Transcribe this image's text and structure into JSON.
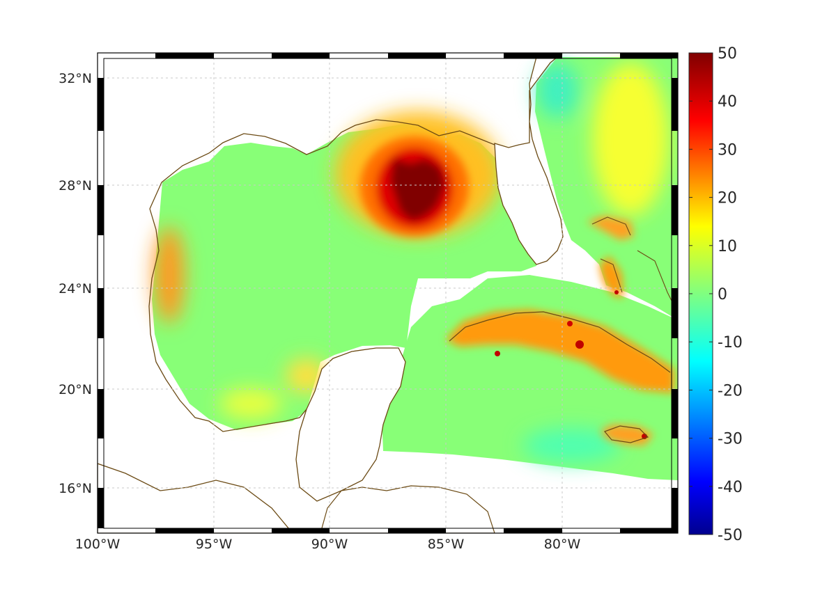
{
  "map": {
    "type": "heatmap",
    "title": "",
    "projection": "mercator",
    "lon_range": [
      -100,
      -75
    ],
    "lat_range": [
      14.2,
      33
    ],
    "grid": true,
    "x_ticks": [
      {
        "value": -100,
        "label": "100°W"
      },
      {
        "value": -95,
        "label": "95°W"
      },
      {
        "value": -90,
        "label": "90°W"
      },
      {
        "value": -85,
        "label": "85°W"
      },
      {
        "value": -80,
        "label": "80°W"
      }
    ],
    "y_ticks": [
      {
        "value": 32,
        "label": "32°N"
      },
      {
        "value": 28,
        "label": "28°N"
      },
      {
        "value": 24,
        "label": "24°N"
      },
      {
        "value": 20,
        "label": "20°N"
      },
      {
        "value": 16,
        "label": "16°N"
      }
    ],
    "colors": {
      "coastline": "#6b4a14",
      "background_field": "#88ff77",
      "colormap": "jet"
    },
    "features": [
      {
        "name": "Loop Current eddy",
        "center": [
          -86.6,
          27.6
        ],
        "value": 50
      },
      {
        "name": "Western Gulf warm band",
        "center": [
          -97.3,
          24.8
        ],
        "value": 22
      },
      {
        "name": "Cuba coastal anomaly",
        "center": [
          -79.5,
          21.8
        ],
        "value": 28
      },
      {
        "name": "Jamaica coastal anomaly",
        "center": [
          -77.2,
          18.1
        ],
        "value": 22
      },
      {
        "name": "Bahamas banks anomaly",
        "center": [
          -78.2,
          24.6
        ],
        "value": 25
      },
      {
        "name": "Atlantic shelf low",
        "center": [
          -79.6,
          31.8
        ],
        "value": -3
      }
    ]
  },
  "colorbar": {
    "min": -50,
    "max": 50,
    "ticks": [
      "50",
      "40",
      "30",
      "20",
      "10",
      "0",
      "-10",
      "-20",
      "-30",
      "-40",
      "-50"
    ]
  }
}
